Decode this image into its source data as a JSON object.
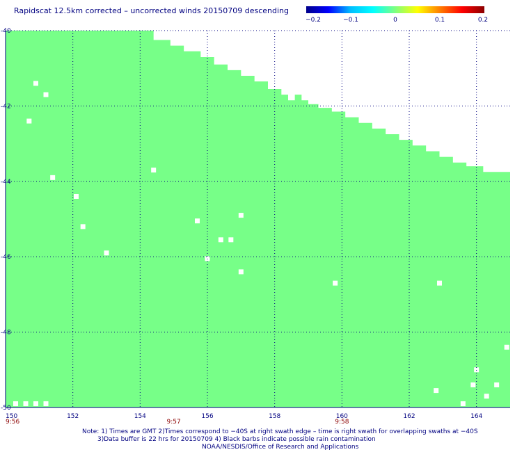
{
  "title": "Rapidscat 12.5km corrected – uncorrected winds 20150709 descending",
  "colorbar": {
    "tick_labels": [
      "−0.2",
      "−0.1",
      "0",
      "0.1",
      "0.2"
    ],
    "colors": [
      "#00008b",
      "#0000ff",
      "#00bfff",
      "#00ffff",
      "#7fff7f",
      "#ffff00",
      "#ff7f00",
      "#ff0000",
      "#8b0000"
    ]
  },
  "map": {
    "fill_color": "#77ff88",
    "grid_color": "#000080",
    "lon_range": [
      150,
      165
    ],
    "lat_range": [
      -50,
      -40
    ],
    "lon_ticks": [
      150,
      152,
      154,
      156,
      158,
      160,
      162,
      164
    ],
    "lon_labels": [
      "150",
      "152",
      "154",
      "156",
      "158",
      "160",
      "162",
      "164"
    ],
    "lat_ticks": [
      -40,
      -42,
      -44,
      -46,
      -48,
      -50
    ],
    "lat_labels": [
      "-40",
      "-42",
      "-44",
      "-46",
      "-48",
      "-50"
    ],
    "time_labels": [
      {
        "lon": 150,
        "text": "9:56"
      },
      {
        "lon": 155,
        "text": "9:57"
      },
      {
        "lon": 160,
        "text": "9:58"
      }
    ],
    "swath_edge": [
      [
        154.2,
        -40.0
      ],
      [
        154.4,
        -40.25
      ],
      [
        154.9,
        -40.4
      ],
      [
        155.3,
        -40.55
      ],
      [
        155.8,
        -40.7
      ],
      [
        156.2,
        -40.9
      ],
      [
        156.6,
        -41.05
      ],
      [
        157.0,
        -41.2
      ],
      [
        157.4,
        -41.35
      ],
      [
        157.8,
        -41.55
      ],
      [
        158.2,
        -41.7
      ],
      [
        158.4,
        -41.85
      ],
      [
        158.6,
        -41.7
      ],
      [
        158.8,
        -41.85
      ],
      [
        159.0,
        -41.95
      ],
      [
        159.3,
        -42.05
      ],
      [
        159.7,
        -42.15
      ],
      [
        160.1,
        -42.3
      ],
      [
        160.5,
        -42.45
      ],
      [
        160.9,
        -42.6
      ],
      [
        161.3,
        -42.75
      ],
      [
        161.7,
        -42.9
      ],
      [
        162.1,
        -43.05
      ],
      [
        162.5,
        -43.2
      ],
      [
        162.9,
        -43.35
      ],
      [
        163.3,
        -43.5
      ],
      [
        163.7,
        -43.6
      ],
      [
        164.2,
        -43.75
      ],
      [
        164.9,
        -43.75
      ]
    ],
    "missing_cells": [
      [
        150.9,
        -41.4
      ],
      [
        151.2,
        -41.7
      ],
      [
        150.7,
        -42.4
      ],
      [
        151.4,
        -43.9
      ],
      [
        152.1,
        -44.4
      ],
      [
        152.3,
        -45.2
      ],
      [
        153.0,
        -45.9
      ],
      [
        154.4,
        -43.7
      ],
      [
        155.7,
        -45.05
      ],
      [
        156.4,
        -45.55
      ],
      [
        156.7,
        -45.55
      ],
      [
        157.0,
        -44.9
      ],
      [
        156.0,
        -46.05
      ],
      [
        157.0,
        -46.4
      ],
      [
        159.8,
        -46.7
      ],
      [
        162.9,
        -46.7
      ],
      [
        164.0,
        -49.0
      ],
      [
        163.9,
        -49.4
      ],
      [
        164.6,
        -49.4
      ],
      [
        164.3,
        -49.7
      ],
      [
        162.8,
        -49.55
      ],
      [
        163.6,
        -49.9
      ],
      [
        164.9,
        -48.4
      ],
      [
        150.3,
        -49.9
      ],
      [
        150.6,
        -49.9
      ],
      [
        150.9,
        -49.9
      ],
      [
        151.2,
        -49.9
      ]
    ]
  },
  "notes": [
    "Note: 1) Times are GMT 2)Times correspond to −40S at right swath edge – time is right swath for overlapping swaths at −40S",
    "3)Data buffer is 22 hrs for 20150709 4) Black barbs indicate possible rain contamination",
    "NOAA/NESDIS/Office of Research and Applications"
  ]
}
